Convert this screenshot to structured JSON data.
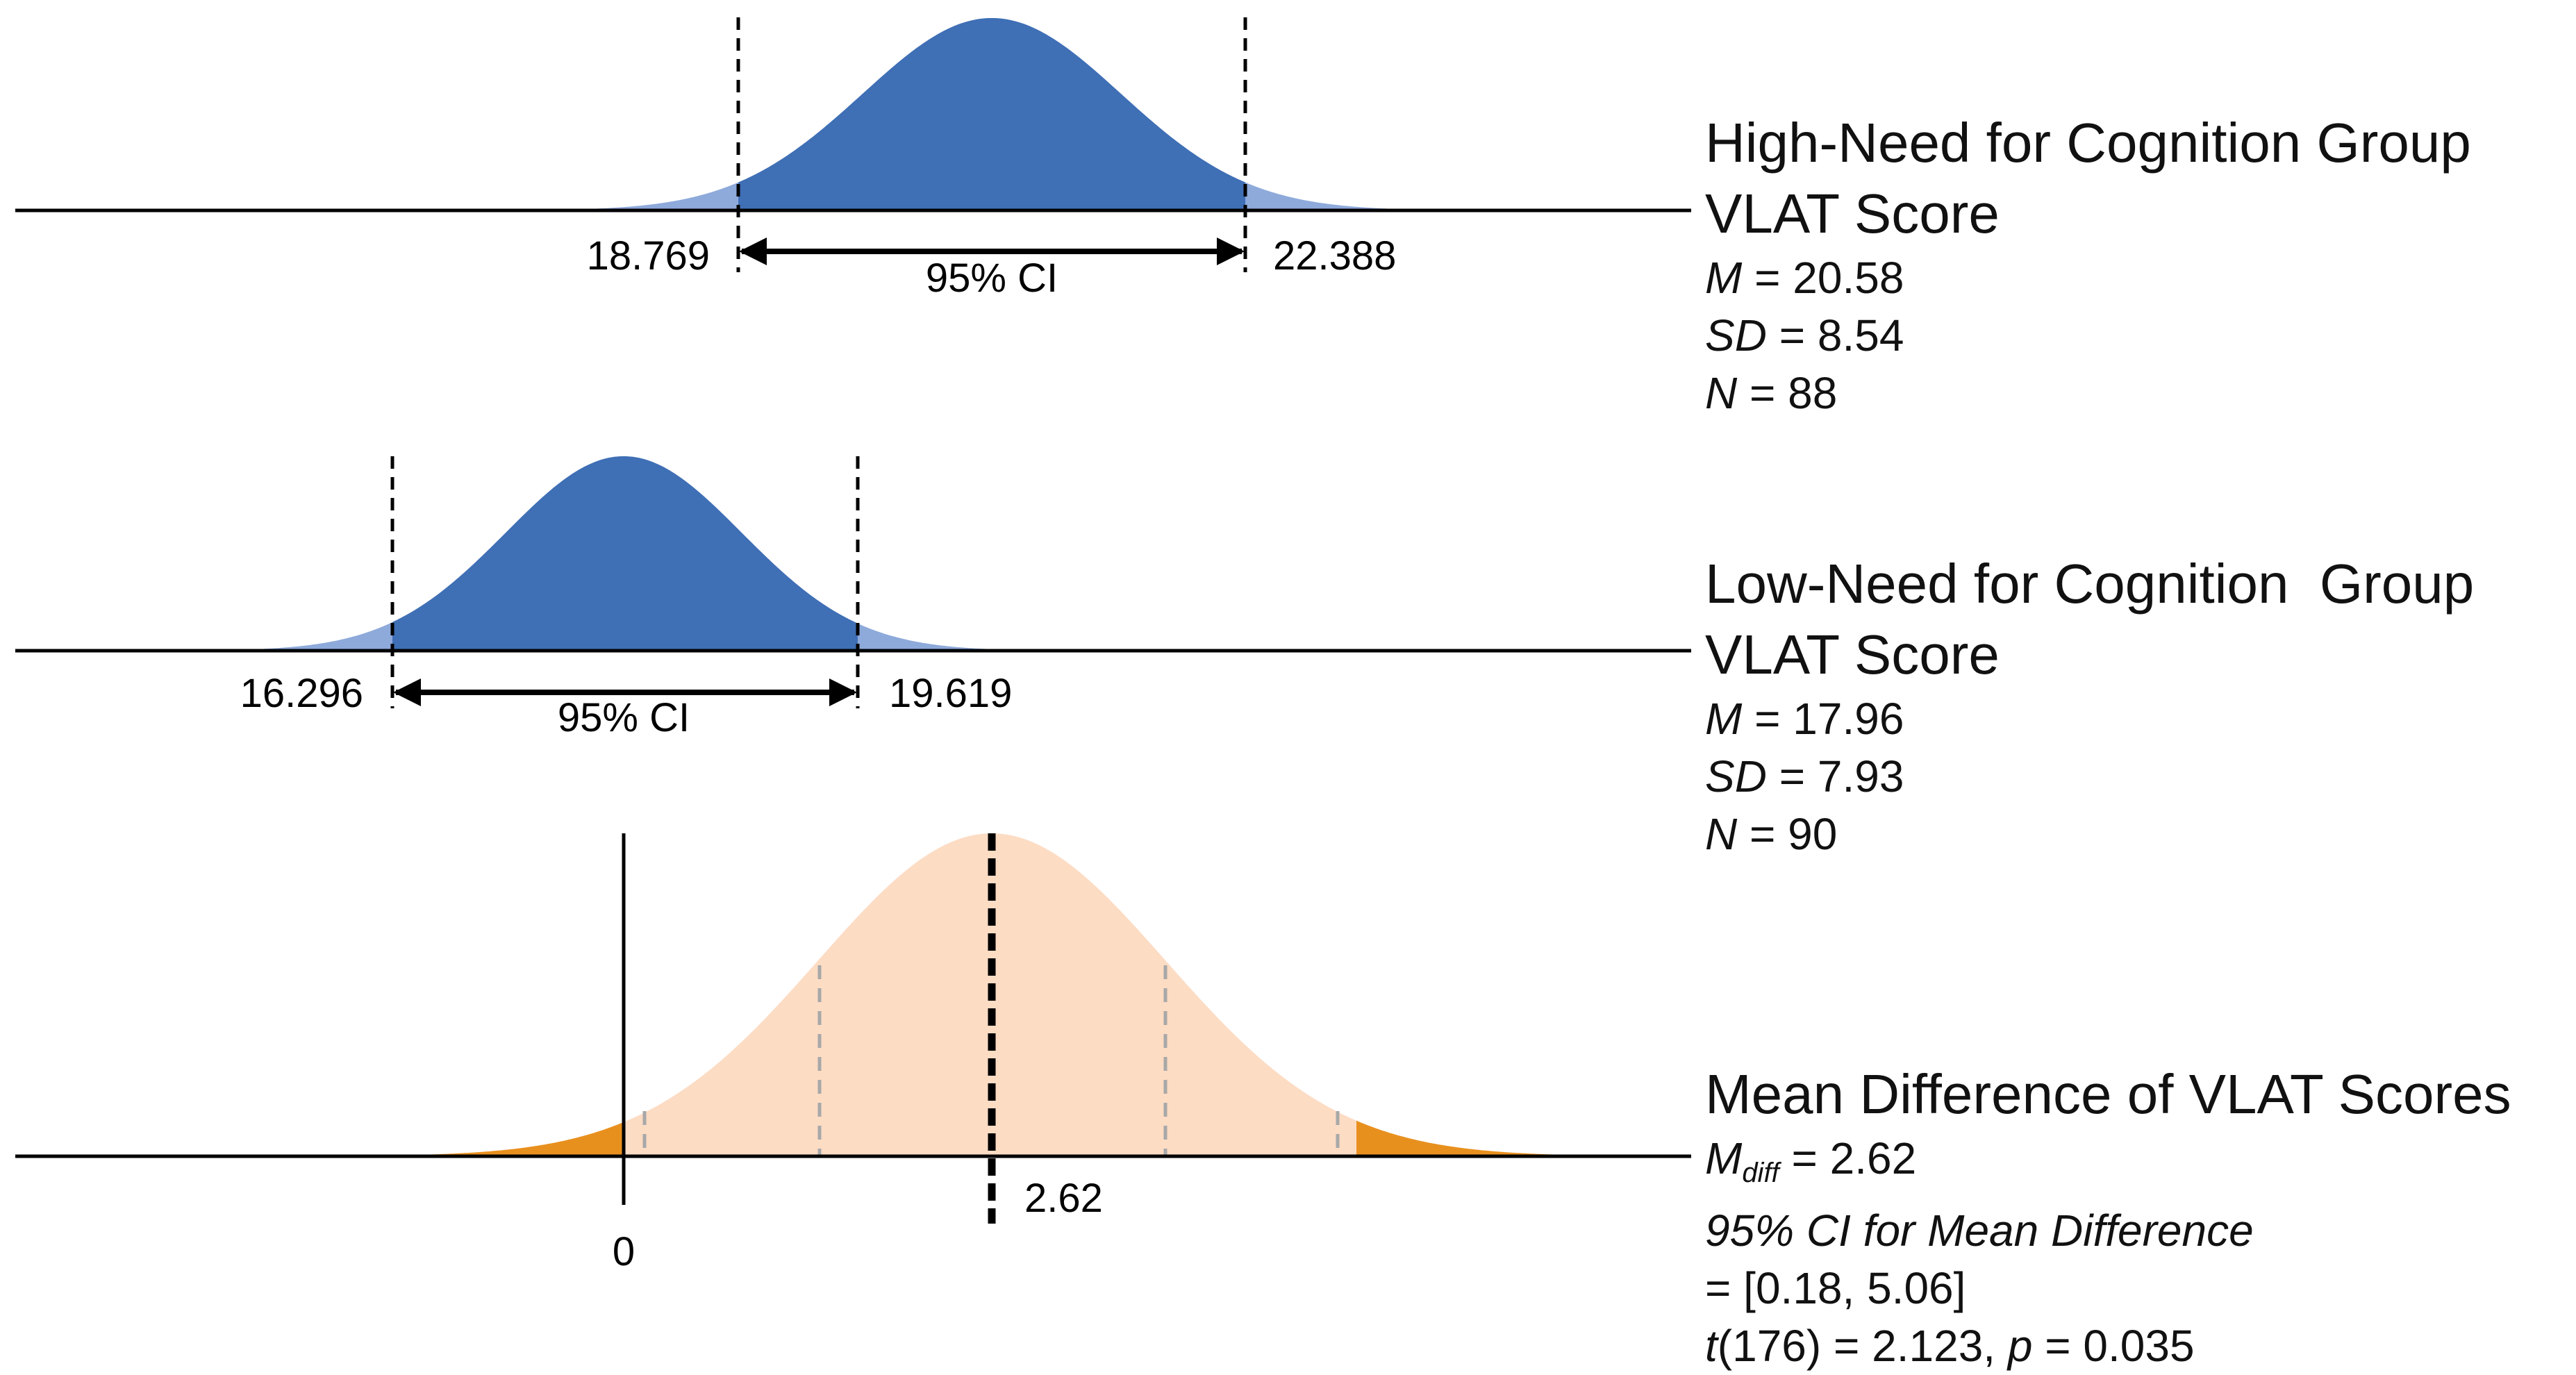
{
  "chart_data": [
    {
      "type": "area",
      "title": "High-Need for Cognition Group VLAT Score",
      "title_lines": [
        "High-Need for Cognition Group",
        "VLAT Score"
      ],
      "stats": {
        "M_label": "M",
        "M": "20.58",
        "SD_label": "SD",
        "SD": "8.54",
        "N_label": "N",
        "N": "88"
      },
      "ci": {
        "lower": "18.769",
        "upper": "22.388",
        "label": "95% CI"
      },
      "colors": {
        "fill": "#3f6fb5",
        "tail": "#8eaadb"
      }
    },
    {
      "type": "area",
      "title": "Low-Need for Cognition Group VLAT Score",
      "title_lines": [
        "Low-Need for Cognition  Group",
        "VLAT Score"
      ],
      "stats": {
        "M_label": "M",
        "M": "17.96",
        "SD_label": "SD",
        "SD": "7.93",
        "N_label": "N",
        "N": "90"
      },
      "ci": {
        "lower": "16.296",
        "upper": "19.619",
        "label": "95% CI"
      },
      "colors": {
        "fill": "#3f6fb5",
        "tail": "#8eaadb"
      }
    },
    {
      "type": "area",
      "title": "Mean Difference of VLAT Scores",
      "title_lines": [
        "Mean Difference of VLAT Scores"
      ],
      "stats": {
        "Mdiff_label": "M",
        "Mdiff_sub": "diff",
        "Mdiff": "2.62",
        "ci_label": "95% CI for Mean Difference",
        "ci_value": "= [0.18, 5.06]",
        "t_label": "t",
        "t_df": "(176) = 2.123, ",
        "p_label": "p",
        "p_value": " = 0.035"
      },
      "markers": {
        "zero_label": "0",
        "mean_label": "2.62"
      },
      "colors": {
        "fill": "#fddcc4",
        "tail": "#e8901e"
      }
    }
  ]
}
